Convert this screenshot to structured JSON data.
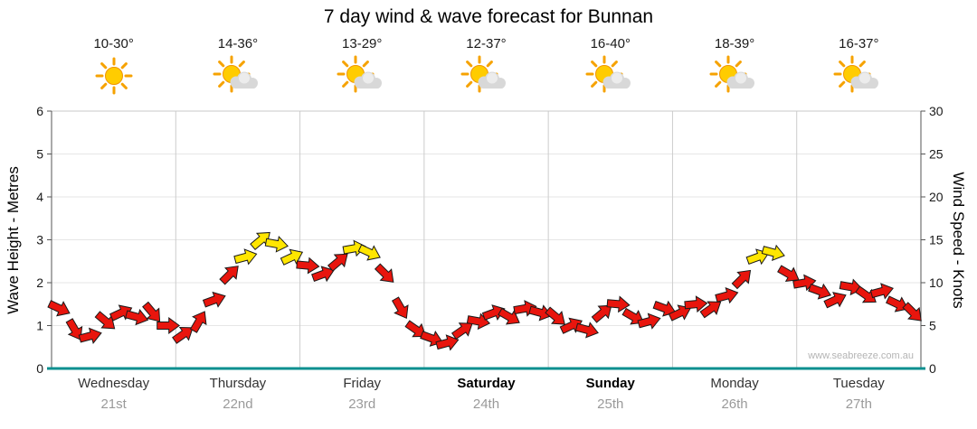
{
  "chart_data": {
    "type": "line",
    "title": "7 day wind & wave forecast for Bunnan",
    "watermark": "www.seabreeze.com.au",
    "left_axis": {
      "label": "Wave Height - Metres",
      "min": 0,
      "max": 6,
      "ticks": [
        0,
        1,
        2,
        3,
        4,
        5,
        6
      ]
    },
    "right_axis": {
      "label": "Wind Speed - Knots",
      "min": 0,
      "max": 30,
      "ticks": [
        0,
        5,
        10,
        15,
        20,
        25,
        30
      ]
    },
    "days": [
      {
        "name": "Wednesday",
        "date": "21st",
        "temp": "10-30°",
        "icon": "sunny",
        "bold": false
      },
      {
        "name": "Thursday",
        "date": "22nd",
        "temp": "14-36°",
        "icon": "partly-cloudy",
        "bold": false
      },
      {
        "name": "Friday",
        "date": "23rd",
        "temp": "13-29°",
        "icon": "partly-cloudy",
        "bold": false
      },
      {
        "name": "Saturday",
        "date": "24th",
        "temp": "12-37°",
        "icon": "partly-cloudy",
        "bold": true
      },
      {
        "name": "Sunday",
        "date": "25th",
        "temp": "16-40°",
        "icon": "partly-cloudy",
        "bold": true
      },
      {
        "name": "Monday",
        "date": "26th",
        "temp": "18-39°",
        "icon": "partly-cloudy",
        "bold": false
      },
      {
        "name": "Tuesday",
        "date": "27th",
        "temp": "16-37°",
        "icon": "partly-cloudy",
        "bold": false
      }
    ],
    "wind_series": {
      "units": "knots",
      "points_per_day": 8,
      "knots": [
        7,
        4.5,
        3.8,
        5.5,
        6.5,
        6,
        6.5,
        5,
        4,
        5.5,
        8,
        11,
        13,
        15,
        14.5,
        13,
        12,
        11,
        12.5,
        14,
        13.5,
        11,
        7,
        4.5,
        3.5,
        3,
        4.5,
        5.5,
        6.5,
        6,
        7,
        6.5,
        6,
        5,
        4.5,
        6.5,
        7.5,
        6,
        5.5,
        7,
        6.5,
        7.5,
        7,
        8.5,
        10.5,
        13,
        13.5,
        11,
        10,
        9,
        8,
        9.5,
        8.5,
        9,
        7.5,
        6.5
      ],
      "directions_deg": [
        25,
        60,
        -15,
        40,
        -25,
        15,
        50,
        0,
        -35,
        -60,
        -20,
        -45,
        -15,
        -40,
        10,
        -25,
        5,
        -20,
        -40,
        -10,
        25,
        45,
        60,
        35,
        20,
        -15,
        -35,
        10,
        -20,
        30,
        -10,
        15,
        40,
        -25,
        15,
        -40,
        5,
        30,
        -15,
        20,
        -25,
        -5,
        -35,
        -15,
        -45,
        -20,
        15,
        30,
        -10,
        20,
        -25,
        10,
        35,
        -15,
        25,
        45
      ]
    },
    "strong_threshold_knots": 13,
    "colors": {
      "moderate": "#e8150d",
      "strong": "#ffe600",
      "axis_line": "#0a8f8f"
    }
  }
}
